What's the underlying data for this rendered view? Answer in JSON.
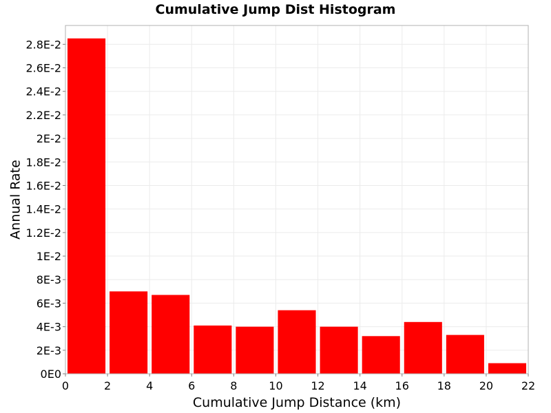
{
  "chart_data": {
    "type": "bar",
    "title": "Cumulative Jump Dist Histogram",
    "xlabel": "Cumulative Jump Distance (km)",
    "ylabel": "Annual Rate",
    "bar_color": "#ff0000",
    "grid": true,
    "xlim": [
      0,
      22
    ],
    "ylim": [
      0,
      0.0296
    ],
    "x_ticks": [
      0,
      2,
      4,
      6,
      8,
      10,
      12,
      14,
      16,
      18,
      20,
      22
    ],
    "x_tick_labels": [
      "0",
      "2",
      "4",
      "6",
      "8",
      "10",
      "12",
      "14",
      "16",
      "18",
      "20",
      "22"
    ],
    "y_ticks": [
      0,
      0.002,
      0.004,
      0.006,
      0.008,
      0.01,
      0.012,
      0.014,
      0.016,
      0.018,
      0.02,
      0.022,
      0.024,
      0.026,
      0.028
    ],
    "y_tick_labels": [
      "0E0",
      "2E-3",
      "4E-3",
      "6E-3",
      "8E-3",
      "1E-2",
      "1.2E-2",
      "1.4E-2",
      "1.6E-2",
      "1.8E-2",
      "2E-2",
      "2.2E-2",
      "2.4E-2",
      "2.6E-2",
      "2.8E-2"
    ],
    "bins": [
      {
        "x_start": 0,
        "x_end": 2,
        "value": 0.0285
      },
      {
        "x_start": 2,
        "x_end": 4,
        "value": 0.007
      },
      {
        "x_start": 4,
        "x_end": 6,
        "value": 0.0067
      },
      {
        "x_start": 6,
        "x_end": 8,
        "value": 0.0041
      },
      {
        "x_start": 8,
        "x_end": 10,
        "value": 0.004
      },
      {
        "x_start": 10,
        "x_end": 12,
        "value": 0.0054
      },
      {
        "x_start": 12,
        "x_end": 14,
        "value": 0.004
      },
      {
        "x_start": 14,
        "x_end": 16,
        "value": 0.0032
      },
      {
        "x_start": 16,
        "x_end": 18,
        "value": 0.0044
      },
      {
        "x_start": 18,
        "x_end": 20,
        "value": 0.0033
      },
      {
        "x_start": 20,
        "x_end": 22,
        "value": 0.0009
      }
    ]
  }
}
